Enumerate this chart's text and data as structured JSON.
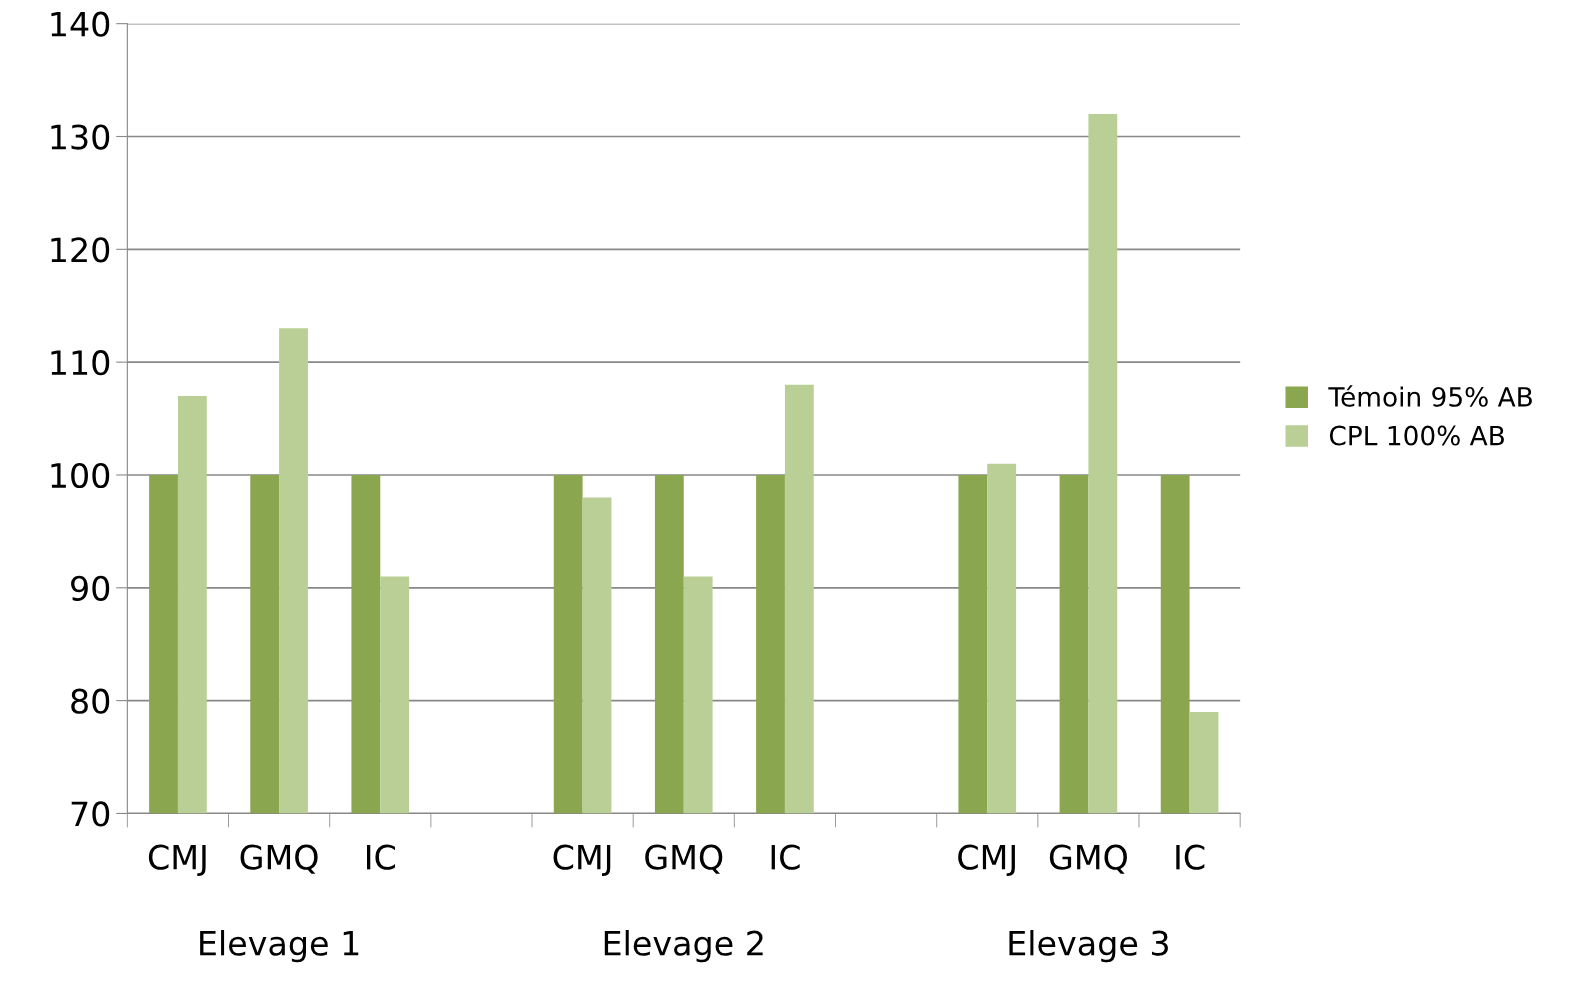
{
  "chart_data": {
    "type": "bar",
    "categories": [
      "CMJ",
      "GMQ",
      "IC",
      null,
      "CMJ",
      "GMQ",
      "IC",
      null,
      "CMJ",
      "GMQ",
      "IC"
    ],
    "series": [
      {
        "name": "Témoin 95% AB",
        "color": "#8aa750",
        "values": [
          100,
          100,
          100,
          null,
          100,
          100,
          100,
          null,
          100,
          100,
          100
        ]
      },
      {
        "name": "CPL 100% AB",
        "color": "#b9cf96",
        "values": [
          107,
          113,
          91,
          null,
          98,
          91,
          108,
          null,
          101,
          132,
          79
        ]
      }
    ],
    "annotations": [
      "Elevage 1",
      "Elevage 2",
      "Elevage 3"
    ],
    "ylim": [
      70,
      140
    ],
    "yticks": [
      70,
      80,
      90,
      100,
      110,
      120,
      130,
      140
    ],
    "grid": "y",
    "legend": "right"
  }
}
